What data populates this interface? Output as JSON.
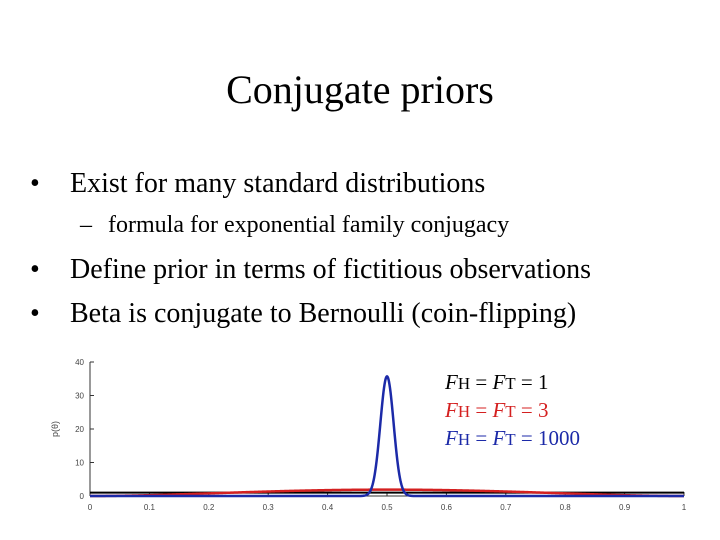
{
  "slide": {
    "title": "Conjugate priors",
    "bullets": [
      "Exist for many standard distributions",
      "Define prior in terms of fictitious observations",
      "Beta is conjugate to Bernoulli (coin-flipping)"
    ],
    "sub_bullet": "formula for exponential family conjugacy"
  },
  "chart_data": {
    "type": "line",
    "ylabel": "p(θ)",
    "xlim": [
      0,
      1
    ],
    "ylim": [
      0,
      40
    ],
    "x_ticks": [
      "0",
      "0.1",
      "0.2",
      "0.3",
      "0.4",
      "0.5",
      "0.6",
      "0.7",
      "0.8",
      "0.9",
      "1"
    ],
    "y_ticks": [
      "0",
      "10",
      "20",
      "30",
      "40"
    ],
    "series": [
      {
        "legend": {
          "v1": "F",
          "s1": "H",
          "mid": " = ",
          "v2": "F",
          "s2": "T",
          "val": " = 1"
        },
        "color": "#000000",
        "alpha": 1,
        "beta": 1,
        "peak": 1.0
      },
      {
        "legend": {
          "v1": "F",
          "s1": "H",
          "mid": " = ",
          "v2": "F",
          "s2": "T",
          "val": " = 3"
        },
        "color": "#d42020",
        "alpha": 3,
        "beta": 3,
        "peak": 1.9
      },
      {
        "legend": {
          "v1": "F",
          "s1": "H",
          "mid": " = ",
          "v2": "F",
          "s2": "T",
          "val": " = 1000"
        },
        "color": "#1c2aa8",
        "alpha": 1000,
        "beta": 1000,
        "peak": 35.7
      }
    ]
  }
}
